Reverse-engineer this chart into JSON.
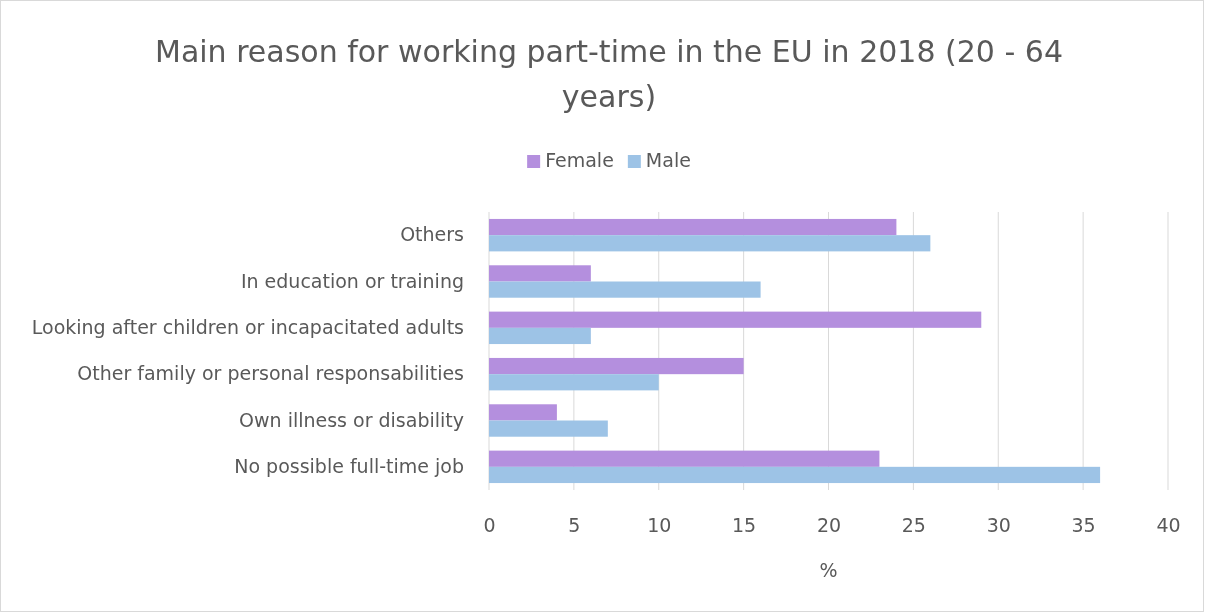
{
  "chart_data": {
    "type": "bar",
    "orientation": "horizontal",
    "title": "Main reason for working part-time in the EU in 2018 (20 - 64 years)",
    "xlabel": "%",
    "categories": [
      "Others",
      "In education or training",
      "Looking after children or incapacitated adults",
      "Other family or personal responsabilities",
      "Own illness or disability",
      "No possible full-time job"
    ],
    "series": [
      {
        "name": "Female",
        "color": "#b48fde",
        "values": [
          24,
          6,
          29,
          15,
          4,
          23
        ]
      },
      {
        "name": "Male",
        "color": "#9dc3e6",
        "values": [
          26,
          16,
          6,
          10,
          7,
          36
        ]
      }
    ],
    "xlim": [
      0,
      40
    ],
    "xticks": [
      0,
      5,
      10,
      15,
      20,
      25,
      30,
      35,
      40
    ],
    "grid": "x",
    "legend": "top"
  }
}
